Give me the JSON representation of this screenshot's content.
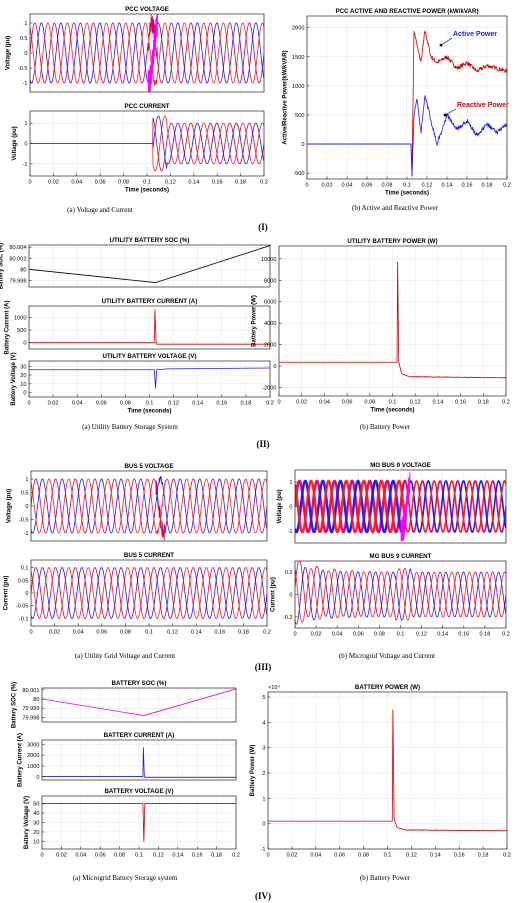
{
  "figure": {
    "section_labels": [
      "(I)",
      "(II)",
      "(III)",
      "(IV)"
    ],
    "captions": [
      "(a) Voltage and Current",
      "(b) Active and Reactive Power",
      "(a)  Utility Battery Storage  System",
      "(b)  Battery Power",
      "(a) Utility Grid Voltage and Current",
      "(b) Microgrid Voltage and Current",
      "(a) Microgrid Battery Storage system",
      "(b) Battery Power"
    ]
  },
  "chart_data": [
    {
      "id": "pcc_voltage",
      "type": "line",
      "title": "PCC VOLTAGE",
      "xlabel": "",
      "ylabel": "Voltage (pu)",
      "xlim": [
        0,
        0.2
      ],
      "ylim": [
        -1.3,
        1.3
      ],
      "yticks": [
        -1,
        -0.5,
        0,
        0.5,
        1
      ],
      "xticks": [],
      "grid": true,
      "signal": {
        "kind": "three_phase_sine",
        "frequency_hz": 60,
        "amplitude": 1,
        "disturbance_at_s": 0.105
      },
      "colors": [
        "#d4005a",
        "#1a1aff",
        "#ff2020",
        "#ff00ff"
      ]
    },
    {
      "id": "pcc_current",
      "type": "line",
      "title": "PCC CURRENT",
      "xlabel": "Time (seconds)",
      "ylabel": "Voltage (pu)",
      "xlim": [
        0,
        0.2
      ],
      "ylim": [
        -1.6,
        1.6
      ],
      "yticks": [
        -1,
        0,
        1
      ],
      "xticks": [
        0,
        0.02,
        0.04,
        0.06,
        0.08,
        0.1,
        0.12,
        0.14,
        0.16,
        0.18,
        0.2
      ],
      "grid": true,
      "signal": {
        "kind": "three_phase_sine_step",
        "frequency_hz": 60,
        "amplitude_before": 0,
        "amplitude_after": 1,
        "onset_s": 0.105
      },
      "colors": [
        "#d4005a",
        "#1a1aff",
        "#ff2020"
      ]
    },
    {
      "id": "pcc_power",
      "type": "line",
      "title": "PCC ACTIVE AND REACTIVE  POWER  (kW/kVAR)",
      "xlabel": "Time (seconds)",
      "ylabel": "Active/Reactive Power(kW/kVAR)",
      "xlim": [
        0,
        0.2
      ],
      "ylim": [
        -600,
        2200
      ],
      "yticks": [
        -500,
        0,
        500,
        1000,
        1500,
        2000
      ],
      "xticks": [
        0,
        0.02,
        0.04,
        0.06,
        0.08,
        0.1,
        0.12,
        0.14,
        0.16,
        0.18,
        0.2
      ],
      "grid": true,
      "series": [
        {
          "name": "Active Power",
          "color": "#d40000",
          "x": [
            0,
            0.104,
            0.105,
            0.107,
            0.11,
            0.114,
            0.118,
            0.124,
            0.13,
            0.14,
            0.15,
            0.16,
            0.17,
            0.18,
            0.19,
            0.2
          ],
          "y": [
            0,
            0,
            -550,
            1950,
            1700,
            1400,
            1950,
            1500,
            1400,
            1500,
            1300,
            1400,
            1250,
            1350,
            1300,
            1250
          ]
        },
        {
          "name": "Reactive Power",
          "color": "#1a1aff",
          "x": [
            0,
            0.104,
            0.105,
            0.107,
            0.11,
            0.114,
            0.118,
            0.124,
            0.13,
            0.14,
            0.15,
            0.16,
            0.17,
            0.18,
            0.19,
            0.2
          ],
          "y": [
            0,
            0,
            -550,
            500,
            800,
            200,
            850,
            400,
            0,
            500,
            250,
            400,
            150,
            350,
            200,
            350
          ]
        }
      ],
      "annotations": [
        {
          "text": "Active Power",
          "color": "#1a1aff",
          "at": [
            0.134,
            1700
          ]
        },
        {
          "text": "Reactive Power",
          "color": "#d40000",
          "at": [
            0.138,
            500
          ]
        }
      ]
    },
    {
      "id": "ub_soc",
      "type": "line",
      "title": "UTILITY  BATTERY  SOC  (%)",
      "xlabel": "",
      "ylabel": "Battery SOC (%)",
      "xlim": [
        0,
        0.2
      ],
      "ylim": [
        79.9968,
        80.0044
      ],
      "yticks": [
        79.998,
        80,
        80.002,
        80.004
      ],
      "ytick_labels": [
        "79.998",
        "80",
        "80.002",
        "80.004"
      ],
      "xticks": [],
      "grid": true,
      "series": [
        {
          "color": "#000000",
          "x": [
            0,
            0.105,
            0.2
          ],
          "y": [
            80.0,
            79.9976,
            80.0043
          ]
        }
      ]
    },
    {
      "id": "ub_current",
      "type": "line",
      "title": "UTILITY BATTERY CURRENT (A)",
      "xlabel": "",
      "ylabel": "Battery Current (A)",
      "xlim": [
        0,
        0.2
      ],
      "ylim": [
        -250,
        1450
      ],
      "yticks": [
        0,
        500,
        1000
      ],
      "xticks": [],
      "grid": true,
      "series": [
        {
          "color": "#d40000",
          "x": [
            0,
            0.104,
            0.1045,
            0.1055,
            0.106,
            0.2
          ],
          "y": [
            0,
            0,
            1300,
            0,
            -60,
            -60
          ]
        }
      ]
    },
    {
      "id": "ub_voltage",
      "type": "line",
      "title": "UTILITY BATTERY VOLTAGE (V)",
      "xlabel": "Time (seconds)",
      "ylabel": "Battery Voltage (V)",
      "xlim": [
        0,
        0.2
      ],
      "ylim": [
        -5,
        36
      ],
      "yticks": [
        0,
        10,
        20,
        30
      ],
      "xticks": [
        0,
        0.02,
        0.04,
        0.06,
        0.08,
        0.1,
        0.12,
        0.14,
        0.16,
        0.18,
        0.2
      ],
      "grid": true,
      "series": [
        {
          "color": "#1a1aff",
          "x": [
            0,
            0.104,
            0.105,
            0.106,
            0.115,
            0.2
          ],
          "y": [
            26,
            26,
            5,
            26,
            27,
            28
          ]
        }
      ]
    },
    {
      "id": "ub_power",
      "type": "line",
      "title": "UTILITY  BATTERY  POWER  (W)",
      "xlabel": "Time (seconds)",
      "ylabel": "Battery Power (W)",
      "xlim": [
        0,
        0.2
      ],
      "ylim": [
        -2800,
        11200
      ],
      "yticks": [
        -2000,
        0,
        2000,
        4000,
        6000,
        8000,
        10000
      ],
      "xticks": [
        0,
        0.02,
        0.04,
        0.06,
        0.08,
        0.1,
        0.12,
        0.14,
        0.16,
        0.18,
        0.2
      ],
      "grid": true,
      "series": [
        {
          "color": "#d40000",
          "x": [
            0,
            0.104,
            0.1045,
            0.1055,
            0.108,
            0.115,
            0.2
          ],
          "y": [
            350,
            350,
            9700,
            400,
            -700,
            -1000,
            -1100
          ]
        }
      ]
    },
    {
      "id": "bus5_voltage",
      "type": "line",
      "title": "BUS 5 VOLTAGE",
      "xlabel": "",
      "ylabel": "Voltage (pu)",
      "xlim": [
        0,
        0.2
      ],
      "ylim": [
        -1.3,
        1.3
      ],
      "yticks": [
        -1,
        -0.5,
        0,
        0.5,
        1
      ],
      "xticks": [],
      "grid": true,
      "signal": {
        "kind": "three_phase_sine",
        "frequency_hz": 60,
        "amplitude": 1,
        "disturbance_at_s": 0.11
      },
      "colors": [
        "#d4005a",
        "#1a1aff",
        "#ff2020"
      ]
    },
    {
      "id": "bus5_current",
      "type": "line",
      "title": "BUS 5 CURRENT",
      "xlabel": "",
      "ylabel": "Current (pu)",
      "xlim": [
        0,
        0.2
      ],
      "ylim": [
        -0.13,
        0.13
      ],
      "yticks": [
        -0.1,
        -0.05,
        0,
        0.05,
        0.1
      ],
      "xticks": [
        0,
        0.02,
        0.04,
        0.06,
        0.08,
        0.1,
        0.12,
        0.14,
        0.16,
        0.18,
        0.2
      ],
      "grid": true,
      "signal": {
        "kind": "three_phase_sine",
        "frequency_hz": 60,
        "amplitude": 0.1
      },
      "colors": [
        "#d4005a",
        "#1a1aff",
        "#ff2020"
      ]
    },
    {
      "id": "mg_bus9_voltage",
      "type": "line",
      "title": "MG BUS 9 VOLTAGE",
      "xlabel": "",
      "ylabel": "Voltage (pu)",
      "xlim": [
        0,
        0.2
      ],
      "ylim": [
        -1.5,
        1.5
      ],
      "yticks": [
        -1,
        0,
        1
      ],
      "xticks": [],
      "grid": true,
      "signal": {
        "kind": "three_phase_sine_thick",
        "frequency_hz": 60,
        "amplitude": 1.05,
        "thick_until_s": 0.105
      },
      "colors": [
        "#e6006e",
        "#1a1aff",
        "#ff2020",
        "#ff00ff"
      ]
    },
    {
      "id": "mg_bus9_current",
      "type": "line",
      "title": "MG BUS 9 CURRENT",
      "xlabel": "",
      "ylabel": "Current (pu)",
      "xlim": [
        0,
        0.2
      ],
      "ylim": [
        -0.3,
        0.3
      ],
      "yticks": [
        -0.2,
        0,
        0.2
      ],
      "xticks": [
        0,
        0.02,
        0.04,
        0.06,
        0.08,
        0.1,
        0.12,
        0.14,
        0.16,
        0.18,
        0.2
      ],
      "grid": true,
      "signal": {
        "kind": "three_phase_sine_transient",
        "frequency_hz": 60,
        "amplitude": 0.2
      },
      "colors": [
        "#d4005a",
        "#1a1aff",
        "#ff2020"
      ]
    },
    {
      "id": "mb_soc",
      "type": "line",
      "title": "BATTERY SOC (%)",
      "xlabel": "",
      "ylabel": "Battery SOC (%)",
      "xlim": [
        0,
        0.2
      ],
      "ylim": [
        79.9975,
        80.0012
      ],
      "yticks": [
        79.998,
        79.999,
        80,
        80.001
      ],
      "ytick_labels": [
        "79.998",
        "79.999",
        "80",
        "80.001"
      ],
      "xticks": [],
      "grid": true,
      "series": [
        {
          "color": "#e600e6",
          "x": [
            0,
            0.105,
            0.2
          ],
          "y": [
            80.0,
            79.9982,
            80.0011
          ]
        }
      ]
    },
    {
      "id": "mb_current",
      "type": "line",
      "title": "BATTERY CURRENT (A)",
      "xlabel": "",
      "ylabel": "Battery Current (A)",
      "xlim": [
        0,
        0.2
      ],
      "ylim": [
        -300,
        3400
      ],
      "yticks": [
        0,
        1000,
        2000,
        3000
      ],
      "xticks": [],
      "grid": true,
      "series": [
        {
          "color": "#1a1aff",
          "x": [
            0,
            0.104,
            0.1045,
            0.1055,
            0.106,
            0.2
          ],
          "y": [
            20,
            20,
            2700,
            20,
            -50,
            -50
          ]
        }
      ]
    },
    {
      "id": "mb_voltage",
      "type": "line",
      "title": "BATTERY VOLTAGE (V)",
      "xlabel": "",
      "ylabel": "Battery Voltage (V)",
      "xlim": [
        0,
        0.2
      ],
      "ylim": [
        2,
        58
      ],
      "yticks": [
        10,
        20,
        30,
        40,
        50
      ],
      "xticks": [
        0,
        0.02,
        0.04,
        0.06,
        0.08,
        0.1,
        0.12,
        0.14,
        0.16,
        0.18,
        0.2
      ],
      "grid": true,
      "series": [
        {
          "color": "#d40000",
          "x": [
            0,
            0.104,
            0.105,
            0.106,
            0.2
          ],
          "y": [
            50,
            50,
            10,
            50,
            50
          ]
        }
      ]
    },
    {
      "id": "mb_power",
      "type": "line",
      "title": "BATTERY POWER (W)",
      "xlabel": "",
      "ylabel": "Battery Power (W)",
      "exponent_label": "×10⁴",
      "xlim": [
        0,
        0.2
      ],
      "ylim": [
        -1,
        5.2
      ],
      "yticks": [
        -1,
        0,
        1,
        2,
        3,
        4,
        5
      ],
      "xticks": [
        0,
        0.02,
        0.04,
        0.06,
        0.08,
        0.1,
        0.12,
        0.14,
        0.16,
        0.18,
        0.2
      ],
      "grid": true,
      "series": [
        {
          "color": "#d40000",
          "x": [
            0,
            0.104,
            0.1045,
            0.1055,
            0.108,
            0.115,
            0.2
          ],
          "y": [
            0.1,
            0.1,
            4.5,
            0.2,
            -0.15,
            -0.25,
            -0.28
          ]
        }
      ]
    }
  ]
}
